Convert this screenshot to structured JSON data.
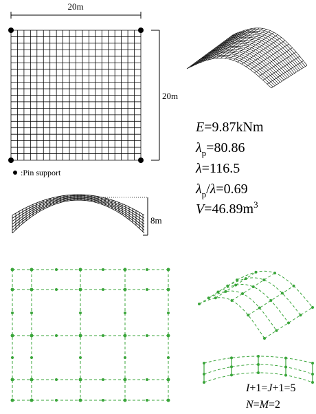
{
  "dimensions": {
    "width": "20m",
    "height": "20m",
    "rise": "8m"
  },
  "legend": {
    "label": ":Pin support"
  },
  "parameters": [
    [
      {
        "italic": "E"
      },
      {
        "text": "=9.87kNm"
      }
    ],
    [
      {
        "italic": "λ"
      },
      {
        "sub": "p"
      },
      {
        "text": "=80.86"
      }
    ],
    [
      {
        "italic": "λ"
      },
      {
        "text": "=116.5"
      }
    ],
    [
      {
        "italic": "λ"
      },
      {
        "sub": "p"
      },
      {
        "text": "/"
      },
      {
        "italic": "λ"
      },
      {
        "text": "=0.69"
      }
    ],
    [
      {
        "italic": "V"
      },
      {
        "text": "=46.89m"
      },
      {
        "sup": "3"
      }
    ]
  ],
  "mesh_labels": [
    [
      {
        "italic": "I"
      },
      {
        "text": "+1="
      },
      {
        "italic": "J"
      },
      {
        "text": "+1=5"
      }
    ],
    [
      {
        "italic": "N"
      },
      {
        "text": "="
      },
      {
        "italic": "M"
      },
      {
        "text": "=2"
      }
    ]
  ]
}
